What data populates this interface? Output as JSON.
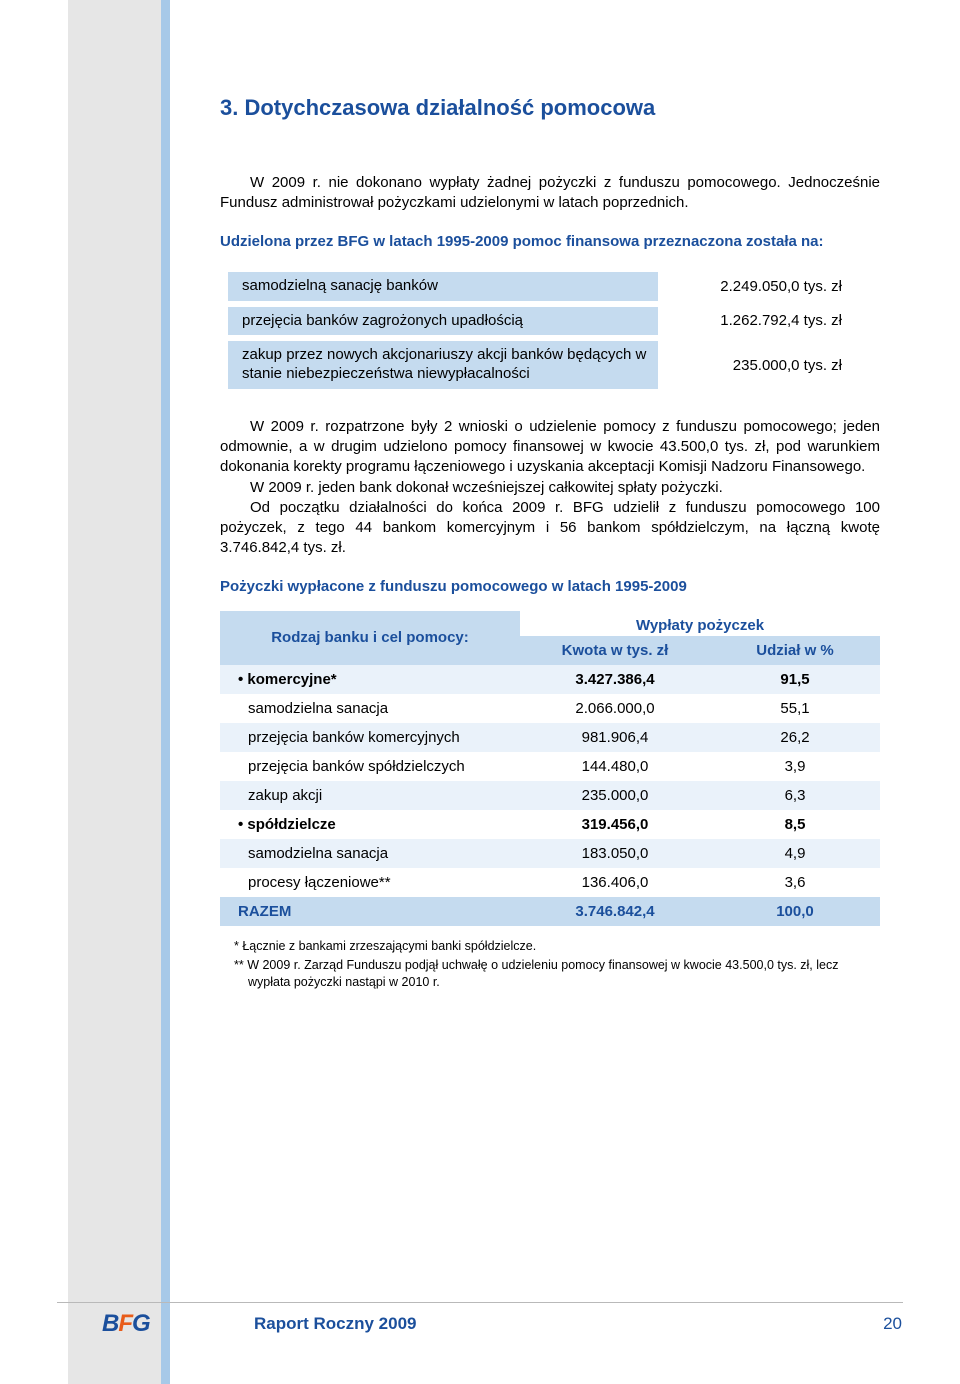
{
  "heading": "3. Dotychczasowa działalność pomocowa",
  "para1": "W 2009 r. nie dokonano wypłaty żadnej pożyczki z funduszu pomocowego. Jednocześnie Fundusz administrował pożyczkami udzielonymi w latach poprzednich.",
  "subhead1": "Udzielona przez BFG w latach 1995-2009 pomoc finansowa przeznaczona została na:",
  "table1": {
    "rows": [
      {
        "label": "samodzielną sanację banków",
        "value": "2.249.050,0 tys. zł"
      },
      {
        "label": "przejęcia banków zagrożonych upadłością",
        "value": "1.262.792,4 tys. zł"
      },
      {
        "label": "zakup przez nowych akcjonariuszy akcji banków będących w stanie niebezpieczeństwa niewypłacalności",
        "value": "235.000,0 tys. zł"
      }
    ]
  },
  "para2": "W 2009 r. rozpatrzone były 2 wnioski o udzielenie pomocy z funduszu pomocowego; jeden odmownie, a w drugim udzielono pomocy finansowej w kwocie 43.500,0 tys. zł, pod warunkiem dokonania korekty programu łączeniowego i uzyskania akceptacji Komisji Nadzoru Finansowego.",
  "para3": "W 2009 r. jeden bank dokonał wcześniejszej całkowitej spłaty pożyczki.",
  "para4": "Od początku działalności do końca 2009 r. BFG udzielił z funduszu pomocowego 100 pożyczek, z tego 44 bankom komercyjnym i 56 bankom spółdzielczym, na łączną kwotę 3.746.842,4 tys. zł.",
  "subhead2": "Pożyczki wypłacone z funduszu pomocowego w latach 1995-2009",
  "table2": {
    "header": {
      "col1": "Rodzaj banku i cel pomocy:",
      "groupTop": "Wypłaty pożyczek",
      "col2": "Kwota w tys. zł",
      "col3": "Udział w %"
    },
    "rows": [
      {
        "label": "• komercyjne*",
        "v1": "3.427.386,4",
        "v2": "91,5",
        "bold": true,
        "odd": true
      },
      {
        "label": "samodzielna sanacja",
        "v1": "2.066.000,0",
        "v2": "55,1",
        "bold": false,
        "odd": false
      },
      {
        "label": "przejęcia banków komercyjnych",
        "v1": "981.906,4",
        "v2": "26,2",
        "bold": false,
        "odd": true
      },
      {
        "label": "przejęcia banków spółdzielczych",
        "v1": "144.480,0",
        "v2": "3,9",
        "bold": false,
        "odd": false
      },
      {
        "label": "zakup akcji",
        "v1": "235.000,0",
        "v2": "6,3",
        "bold": false,
        "odd": true
      },
      {
        "label": "• spółdzielcze",
        "v1": "319.456,0",
        "v2": "8,5",
        "bold": true,
        "odd": false
      },
      {
        "label": "samodzielna sanacja",
        "v1": "183.050,0",
        "v2": "4,9",
        "bold": false,
        "odd": true
      },
      {
        "label": "procesy łączeniowe**",
        "v1": "136.406,0",
        "v2": "3,6",
        "bold": false,
        "odd": false
      }
    ],
    "total": {
      "label": "RAZEM",
      "v1": "3.746.842,4",
      "v2": "100,0"
    }
  },
  "footnote1": "*  Łącznie z bankami zrzeszającymi banki spółdzielcze.",
  "footnote2": "** W 2009 r. Zarząd Funduszu podjął uchwałę o udzieleniu pomocy finansowej w kwocie 43.500,0 tys. zł, lecz wypłata pożyczki nastąpi w 2010 r.",
  "footer": {
    "logo1": "B",
    "logo2": "F",
    "logo3": "G",
    "title": "Raport Roczny 2009",
    "page": "20"
  },
  "colors": {
    "brand_blue": "#1b4f9c",
    "light_blue": "#c5dbef",
    "pale_blue": "#eaf2fa",
    "sidebar_gray": "#e6e6e6",
    "sidebar_stripe": "#a7c9e8",
    "orange": "#e85c1a"
  }
}
